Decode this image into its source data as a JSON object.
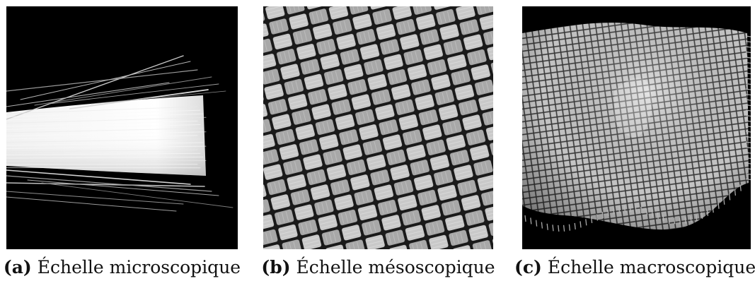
{
  "figures": [
    {
      "tag": "(a)",
      "caption": "Échelle microscopique",
      "subject": "fiber-strands"
    },
    {
      "tag": "(b)",
      "caption": "Échelle mésoscopique",
      "subject": "woven-fabric-closeup"
    },
    {
      "tag": "(c)",
      "caption": "Échelle macroscopique",
      "subject": "woven-fabric-sheet"
    }
  ]
}
